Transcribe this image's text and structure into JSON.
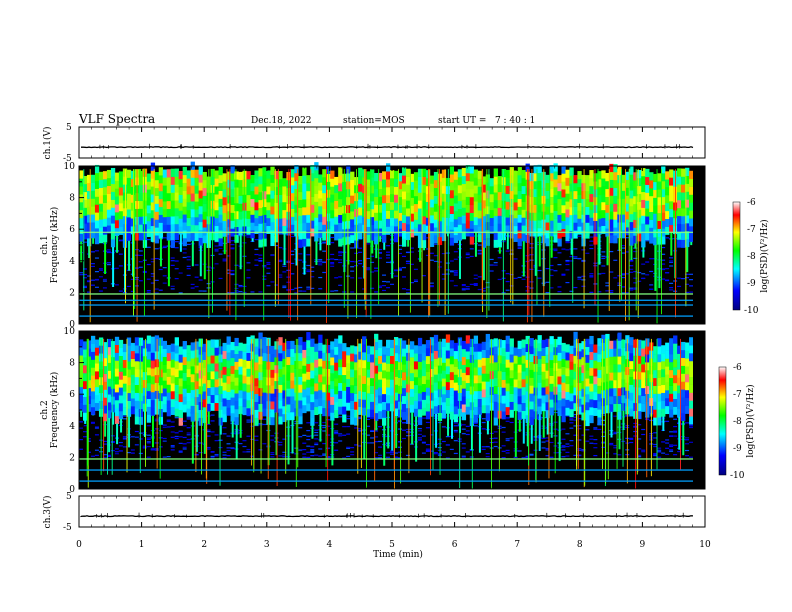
{
  "header": {
    "title": "VLF Spectra",
    "date": "Dec.18, 2022",
    "station": "station=MOS",
    "start_ut": "start UT =   7 : 40 : 1"
  },
  "chart_data": [
    {
      "type": "line",
      "name": "ch1-waveform",
      "ylabel": "ch.1(V)",
      "ylim": [
        -5,
        5
      ],
      "yticks": [
        "5",
        "-5"
      ],
      "xlim": [
        0,
        10
      ],
      "approx_level": -1.5
    },
    {
      "type": "heatmap",
      "name": "ch1-spectrogram",
      "ylabel": "ch.1",
      "ylabel2": "Frequency (kHz)",
      "xlim": [
        0,
        10
      ],
      "ylim": [
        0,
        10
      ],
      "yticks": [
        "0",
        "2",
        "4",
        "6",
        "8",
        "10"
      ],
      "colorbar": {
        "label": "log(PSD)(V²/Hz)",
        "ticks": [
          "-6",
          "-7",
          "-8",
          "-9",
          "-10"
        ],
        "range": [
          -10,
          -6
        ]
      },
      "persistent_tones_khz": [
        0.5,
        1.2,
        1.5,
        1.9,
        5.8
      ],
      "dense_band_khz": [
        5.8,
        9.8
      ],
      "peak_band_khz": [
        6.5,
        9.5
      ]
    },
    {
      "type": "heatmap",
      "name": "ch2-spectrogram",
      "ylabel": "ch.2",
      "ylabel2": "Frequency (kHz)",
      "xlim": [
        0,
        10
      ],
      "ylim": [
        0,
        10
      ],
      "yticks": [
        "0",
        "2",
        "4",
        "6",
        "8",
        "10"
      ],
      "colorbar": {
        "label": "log(PSD)(V²/Hz)",
        "ticks": [
          "-6",
          "-7",
          "-8",
          "-9",
          "-10"
        ],
        "range": [
          -10,
          -6
        ]
      },
      "persistent_tones_khz": [
        0.5,
        1.2,
        1.9
      ],
      "dense_band_khz": [
        5.0,
        9.5
      ],
      "peak_band_khz": [
        6.0,
        8.0
      ]
    },
    {
      "type": "line",
      "name": "ch3-waveform",
      "ylabel": "ch.3(V)",
      "ylim": [
        -5,
        5
      ],
      "yticks": [
        "5",
        "-5"
      ],
      "xlim": [
        0,
        10
      ],
      "approx_level": -1.5
    }
  ],
  "xaxis": {
    "label": "Time (min)",
    "ticks": [
      "0",
      "1",
      "2",
      "3",
      "4",
      "5",
      "6",
      "7",
      "8",
      "9",
      "10"
    ]
  },
  "colors": {
    "colormap": [
      "#000080",
      "#0000ff",
      "#00ffff",
      "#00ff00",
      "#ffff00",
      "#ff0000",
      "#ffffff"
    ],
    "background": "#000000"
  }
}
